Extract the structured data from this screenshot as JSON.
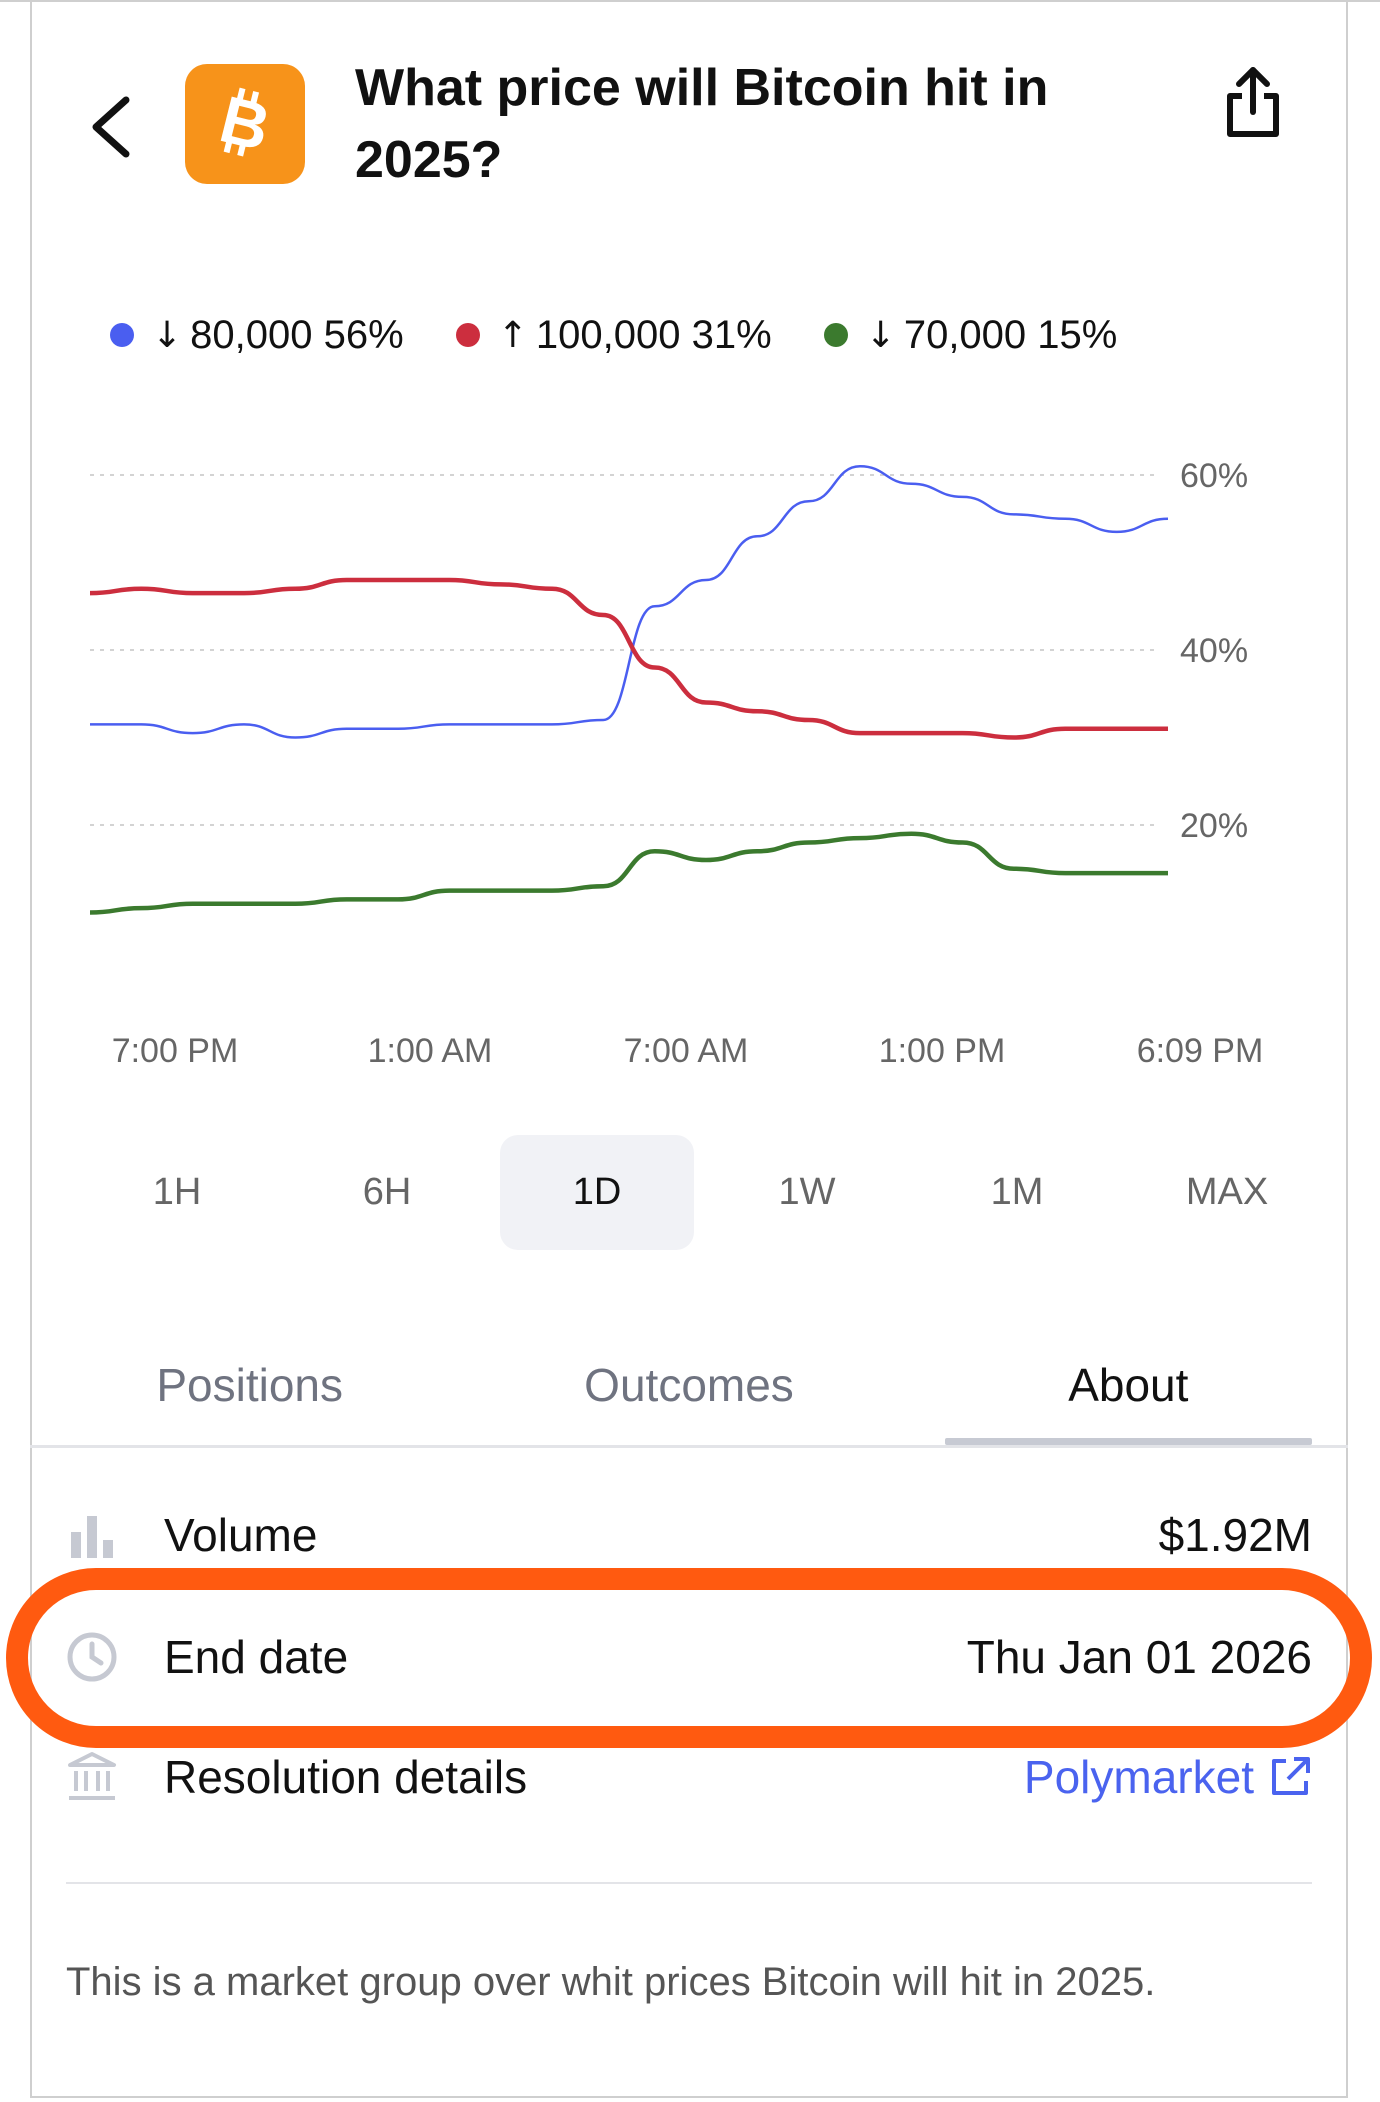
{
  "header": {
    "title": "What price will Bitcoin hit in 2025?",
    "logo_icon": "bitcoin-icon",
    "back_icon": "chevron-left-icon",
    "share_icon": "share-icon"
  },
  "colors": {
    "blue": "#4a5ef0",
    "red": "#cc2e3e",
    "green": "#3b7a2e",
    "brand": "#f7931a",
    "highlight": "#ff5a10",
    "link": "#4a63ef"
  },
  "legend": [
    {
      "color": "#4a5ef0",
      "arrow": "↓",
      "label": "80,000",
      "percent": "56%"
    },
    {
      "color": "#cc2e3e",
      "arrow": "↑",
      "label": "100,000",
      "percent": "31%"
    },
    {
      "color": "#3b7a2e",
      "arrow": "↓",
      "label": "70,000",
      "percent": "15%"
    }
  ],
  "chart_data": {
    "type": "line",
    "x_labels": [
      "7:00 PM",
      "1:00 AM",
      "7:00 AM",
      "1:00 PM",
      "6:09 PM"
    ],
    "y_ticks": [
      "60%",
      "40%",
      "20%"
    ],
    "ylim": [
      0,
      70
    ],
    "grid": true,
    "legend_position": "top",
    "series": [
      {
        "name": "80,000",
        "color": "#4a5ef0",
        "values": [
          31.5,
          31.5,
          30.5,
          31.5,
          30,
          31,
          31,
          31.5,
          31.5,
          31.5,
          32,
          45,
          48,
          53,
          57,
          61,
          59,
          57.5,
          55.5,
          55,
          53.5,
          55
        ]
      },
      {
        "name": "100,000",
        "color": "#cc2e3e",
        "values": [
          46.5,
          47,
          46.5,
          46.5,
          47,
          48,
          48,
          48,
          47.5,
          47,
          44,
          38,
          34,
          33,
          32,
          30.5,
          30.5,
          30.5,
          30,
          31,
          31,
          31
        ]
      },
      {
        "name": "70,000",
        "color": "#3b7a2e",
        "values": [
          10,
          10.5,
          11,
          11,
          11,
          11.5,
          11.5,
          12.5,
          12.5,
          12.5,
          13,
          17,
          16,
          17,
          18,
          18.5,
          19,
          18,
          15,
          14.5,
          14.5,
          14.5
        ]
      }
    ]
  },
  "ranges": [
    "1H",
    "6H",
    "1D",
    "1W",
    "1M",
    "MAX"
  ],
  "tabs": [
    "Positions",
    "Outcomes",
    "About"
  ],
  "details": {
    "volume_label": "Volume",
    "volume_value": "$1.92M",
    "end_label": "End date",
    "end_value": "Thu Jan 01 2026",
    "resolution_label": "Resolution details",
    "resolution_link": "Polymarket"
  },
  "description": "This is a market group over whit prices Bitcoin will hit in 2025."
}
